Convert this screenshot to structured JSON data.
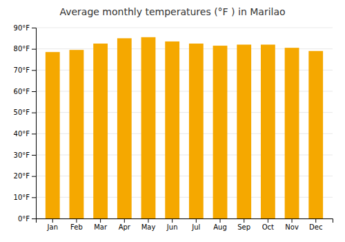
{
  "chart_data": {
    "type": "bar",
    "title": "Average monthly temperatures (°F ) in Marilao",
    "categories": [
      "Jan",
      "Feb",
      "Mar",
      "Apr",
      "May",
      "Jun",
      "Jul",
      "Aug",
      "Sep",
      "Oct",
      "Nov",
      "Dec"
    ],
    "values": [
      78.5,
      79.5,
      82.5,
      85.0,
      85.5,
      83.5,
      82.5,
      81.5,
      82.0,
      82.0,
      80.5,
      79.0
    ],
    "color": "#F5A800",
    "ylim": [
      0,
      90
    ],
    "yticks": [
      {
        "value": 0,
        "label": "0°F"
      },
      {
        "value": 10,
        "label": "10°F"
      },
      {
        "value": 20,
        "label": "20°F"
      },
      {
        "value": 30,
        "label": "30°F"
      },
      {
        "value": 40,
        "label": "40°F"
      },
      {
        "value": 50,
        "label": "50°F"
      },
      {
        "value": 60,
        "label": "60°F"
      },
      {
        "value": 70,
        "label": "70°F"
      },
      {
        "value": 80,
        "label": "80°F"
      },
      {
        "value": 90,
        "label": "90°F"
      }
    ],
    "grid": true
  }
}
